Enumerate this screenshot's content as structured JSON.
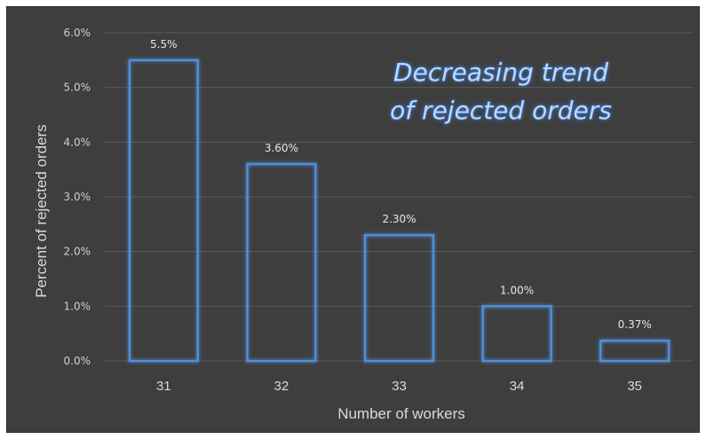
{
  "chart_data": {
    "type": "bar",
    "categories": [
      "31",
      "32",
      "33",
      "34",
      "35"
    ],
    "values": [
      5.5,
      3.6,
      2.3,
      1.0,
      0.37
    ],
    "data_labels": [
      "5.5%",
      "3.60%",
      "2.30%",
      "1.00%",
      "0.37%"
    ],
    "title": "",
    "annotation": [
      "Decreasing trend",
      "of rejected orders"
    ],
    "xlabel": "Number of workers",
    "ylabel": "Percent of rejected orders",
    "ylim": [
      0,
      6
    ],
    "yticks": [
      "0.0%",
      "1.0%",
      "2.0%",
      "3.0%",
      "4.0%",
      "5.0%",
      "6.0%"
    ],
    "grid": true,
    "legend": "none",
    "colors": {
      "background": "#3e3e3e",
      "bar_outline": "#4f8fd8",
      "annotation_fill": "#b9d9ff",
      "text": "#d9d9d9"
    }
  }
}
